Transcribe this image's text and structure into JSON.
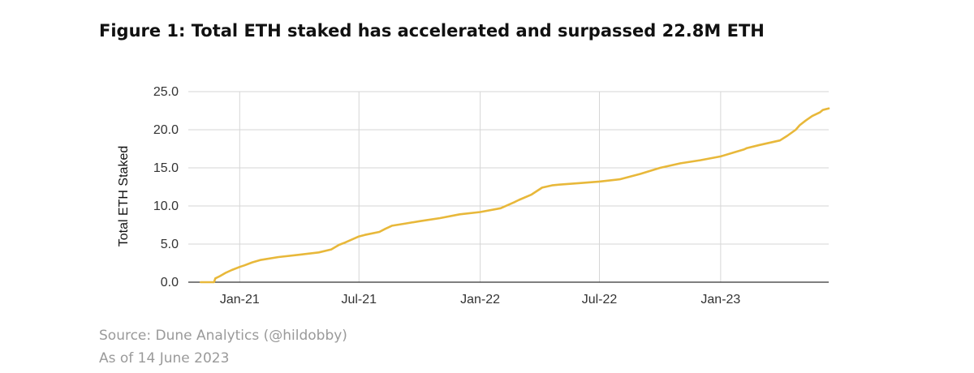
{
  "figure": {
    "title": "Figure 1: Total ETH staked has accelerated and surpassed 22.8M ETH",
    "source": "Source: Dune Analytics (@hildobby)",
    "as_of": "As of 14 June 2023"
  },
  "chart_data": {
    "type": "line",
    "title": "Figure 1: Total ETH staked has accelerated and surpassed 22.8M ETH",
    "xlabel": "",
    "ylabel": "Total ETH Staked",
    "ylim": [
      0,
      25
    ],
    "xlim": [
      "2020-10-15",
      "2023-06-14"
    ],
    "y_ticks": [
      0,
      5,
      10,
      15,
      20,
      25
    ],
    "y_tick_labels": [
      "0.0",
      "5.0",
      "10.0",
      "15.0",
      "20.0",
      "25.0"
    ],
    "x_ticks": [
      "2021-01-01",
      "2021-07-01",
      "2022-01-01",
      "2022-07-01",
      "2023-01-01"
    ],
    "x_tick_labels": [
      "Jan-21",
      "Jul-21",
      "Jan-22",
      "Jul-22",
      "Jan-23"
    ],
    "grid": true,
    "legend": "none",
    "series": [
      {
        "color": "#E8B83A",
        "x": [
          "2020-11-03",
          "2020-11-23",
          "2020-11-25",
          "2020-12-02",
          "2020-12-10",
          "2020-12-20",
          "2021-01-01",
          "2021-01-08",
          "2021-01-20",
          "2021-02-01",
          "2021-03-01",
          "2021-04-01",
          "2021-05-01",
          "2021-05-20",
          "2021-06-01",
          "2021-06-10",
          "2021-07-01",
          "2021-07-10",
          "2021-08-01",
          "2021-08-10",
          "2021-08-20",
          "2021-09-10",
          "2021-10-01",
          "2021-11-01",
          "2021-12-01",
          "2022-01-01",
          "2022-02-01",
          "2022-02-22",
          "2022-03-01",
          "2022-03-20",
          "2022-04-05",
          "2022-04-20",
          "2022-05-01",
          "2022-06-01",
          "2022-07-01",
          "2022-08-01",
          "2022-09-01",
          "2022-10-01",
          "2022-11-01",
          "2022-12-01",
          "2023-01-01",
          "2023-01-20",
          "2023-02-05",
          "2023-02-10",
          "2023-03-01",
          "2023-04-01",
          "2023-04-12",
          "2023-04-25",
          "2023-05-01",
          "2023-05-10",
          "2023-05-20",
          "2023-06-01",
          "2023-06-05",
          "2023-06-14"
        ],
        "y": [
          0.0,
          0.0,
          0.5,
          0.8,
          1.2,
          1.6,
          2.0,
          2.2,
          2.6,
          2.9,
          3.3,
          3.6,
          3.9,
          4.3,
          4.9,
          5.2,
          6.0,
          6.2,
          6.6,
          7.0,
          7.4,
          7.7,
          8.0,
          8.4,
          8.9,
          9.2,
          9.7,
          10.5,
          10.8,
          11.5,
          12.4,
          12.7,
          12.8,
          13.0,
          13.2,
          13.5,
          14.2,
          15.0,
          15.6,
          16.0,
          16.5,
          17.0,
          17.4,
          17.6,
          18.0,
          18.6,
          19.2,
          20.0,
          20.6,
          21.2,
          21.8,
          22.3,
          22.6,
          22.8
        ]
      }
    ]
  }
}
